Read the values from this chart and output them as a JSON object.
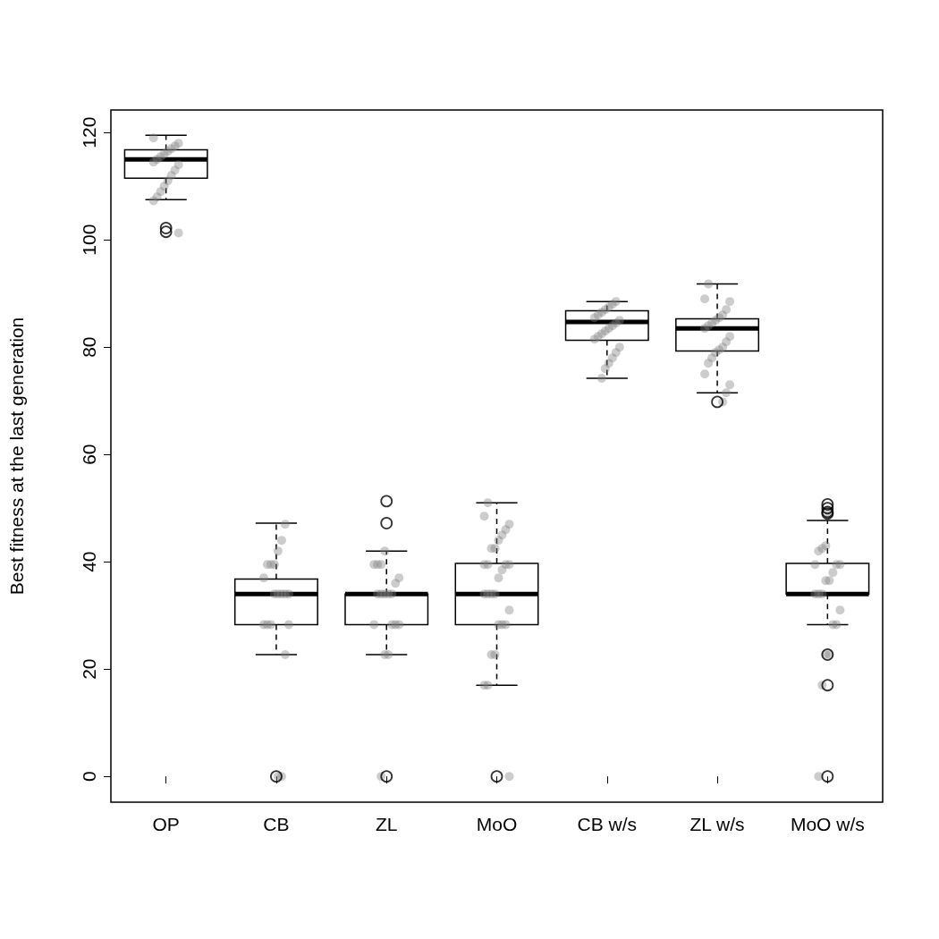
{
  "chart_data": {
    "type": "box",
    "ylabel": "Best fitness at the last generation",
    "categories": [
      "OP",
      "CB",
      "ZL",
      "MoO",
      "CB w/s",
      "ZL w/s",
      "MoO w/s"
    ],
    "boxes": [
      {
        "low": 107.5,
        "q1": 111.5,
        "median": 115,
        "q3": 116.8,
        "high": 119.5,
        "outliers": [
          102.2,
          101.5
        ]
      },
      {
        "low": 22.7,
        "q1": 28.3,
        "median": 34,
        "q3": 36.8,
        "high": 47.2,
        "outliers": [
          0
        ]
      },
      {
        "low": 22.7,
        "q1": 28.3,
        "median": 34,
        "q3": 34,
        "high": 42,
        "outliers": [
          51.3,
          47.2,
          0
        ]
      },
      {
        "low": 17,
        "q1": 28.3,
        "median": 34,
        "q3": 39.7,
        "high": 51,
        "outliers": [
          0
        ]
      },
      {
        "low": 74.2,
        "q1": 81.3,
        "median": 84.7,
        "q3": 86.8,
        "high": 88.5
      },
      {
        "low": 71.5,
        "q1": 79.3,
        "median": 83.5,
        "q3": 85.3,
        "high": 91.8,
        "outliers": [
          69.8
        ]
      },
      {
        "low": 28.3,
        "q1": 34,
        "median": 34,
        "q3": 39.7,
        "high": 47.7,
        "outliers": [
          50.7,
          50,
          49.3,
          49,
          22.7,
          17,
          0
        ]
      }
    ],
    "series": [
      {
        "type": "scatter",
        "color": "#808080",
        "x": [
          "OP",
          "OP",
          "OP",
          "OP",
          "OP",
          "OP",
          "OP",
          "OP",
          "OP",
          "OP",
          "OP",
          "OP",
          "OP",
          "OP",
          "OP",
          "OP",
          "OP",
          "OP",
          "CB",
          "CB",
          "CB",
          "CB",
          "CB",
          "CB",
          "CB",
          "CB",
          "CB",
          "CB",
          "CB",
          "CB",
          "CB",
          "CB",
          "CB",
          "CB",
          "CB",
          "CB",
          "CB",
          "ZL",
          "ZL",
          "ZL",
          "ZL",
          "ZL",
          "ZL",
          "ZL",
          "ZL",
          "ZL",
          "ZL",
          "ZL",
          "ZL",
          "ZL",
          "ZL",
          "ZL",
          "ZL",
          "ZL",
          "ZL",
          "MoO",
          "MoO",
          "MoO",
          "MoO",
          "MoO",
          "MoO",
          "MoO",
          "MoO",
          "MoO",
          "MoO",
          "MoO",
          "MoO",
          "MoO",
          "MoO",
          "MoO",
          "MoO",
          "MoO",
          "MoO",
          "MoO",
          "MoO",
          "MoO",
          "MoO",
          "MoO",
          "MoO",
          "MoO",
          "MoO",
          "MoO",
          "CB w/s",
          "CB w/s",
          "CB w/s",
          "CB w/s",
          "CB w/s",
          "CB w/s",
          "CB w/s",
          "CB w/s",
          "CB w/s",
          "CB w/s",
          "CB w/s",
          "CB w/s",
          "CB w/s",
          "CB w/s",
          "CB w/s",
          "CB w/s",
          "CB w/s",
          "CB w/s",
          "CB w/s",
          "CB w/s",
          "CB w/s",
          "ZL w/s",
          "ZL w/s",
          "ZL w/s",
          "ZL w/s",
          "ZL w/s",
          "ZL w/s",
          "ZL w/s",
          "ZL w/s",
          "ZL w/s",
          "ZL w/s",
          "ZL w/s",
          "ZL w/s",
          "ZL w/s",
          "ZL w/s",
          "ZL w/s",
          "ZL w/s",
          "ZL w/s",
          "ZL w/s",
          "ZL w/s",
          "ZL w/s",
          "ZL w/s",
          "MoO w/s",
          "MoO w/s",
          "MoO w/s",
          "MoO w/s",
          "MoO w/s",
          "MoO w/s",
          "MoO w/s",
          "MoO w/s",
          "MoO w/s",
          "MoO w/s",
          "MoO w/s",
          "MoO w/s",
          "MoO w/s",
          "MoO w/s",
          "MoO w/s",
          "MoO w/s",
          "MoO w/s",
          "MoO w/s",
          "MoO w/s",
          "MoO w/s"
        ],
        "values": [
          119,
          118,
          117.5,
          117,
          116.5,
          116,
          115.5,
          115,
          114.5,
          114,
          113,
          112,
          111,
          110,
          109,
          108,
          107.3,
          101.3,
          47,
          44,
          42,
          39.5,
          39.5,
          39.5,
          37,
          34,
          34,
          34,
          34,
          34,
          28.3,
          28.3,
          28.3,
          28.3,
          22.7,
          0,
          0,
          42,
          39.5,
          39.5,
          39.5,
          37,
          36,
          34,
          34,
          34,
          34,
          34,
          28.3,
          28.3,
          28.3,
          28.3,
          22.7,
          22.7,
          0,
          51,
          48.5,
          47,
          46,
          45,
          44,
          42.5,
          42.5,
          39.5,
          39.5,
          39.5,
          39.5,
          38.5,
          37,
          34,
          34,
          34,
          34,
          31,
          28.3,
          28.3,
          28.3,
          22.7,
          22.7,
          17,
          17,
          0,
          88.5,
          88,
          87.5,
          87,
          86.5,
          86,
          85.5,
          85,
          84.5,
          84,
          83.5,
          83,
          82.5,
          82,
          81.5,
          80,
          79,
          78,
          77,
          76,
          74.2,
          91.8,
          89,
          88.5,
          87,
          86,
          85.5,
          85,
          84.5,
          84,
          83.5,
          82,
          81,
          80,
          79.5,
          79,
          78,
          77,
          75,
          73,
          71.5,
          69.8,
          49,
          43,
          42.5,
          42,
          39.5,
          39.5,
          39.5,
          38,
          36.5,
          36.5,
          34,
          34,
          34,
          31,
          28.3,
          28.3,
          22.7,
          22.7,
          17,
          0
        ]
      }
    ],
    "ylim": [
      -4.8,
      124.2
    ],
    "yticks": [
      0,
      20,
      40,
      60,
      80,
      100,
      120
    ],
    "grid": false
  }
}
